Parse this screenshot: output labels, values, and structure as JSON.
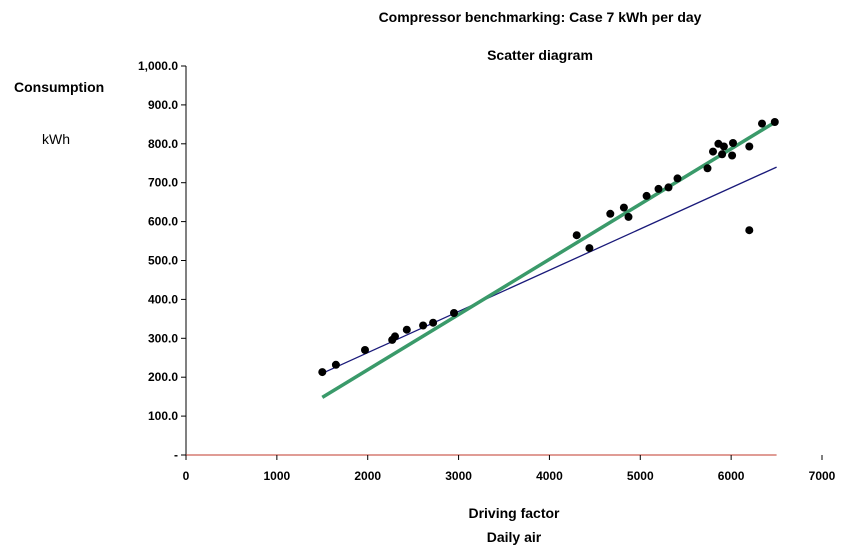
{
  "chart_data": {
    "type": "scatter",
    "title": "Compressor benchmarking: Case 7 kWh per day",
    "subtitle": "Scatter diagram",
    "ylabel": "Consumption",
    "yunit": "kWh",
    "xlabel": "Driving factor",
    "xlabel2": "Daily air",
    "xlim": [
      0,
      7000
    ],
    "ylim": [
      0,
      1000
    ],
    "x_ticks": [
      0,
      1000,
      2000,
      3000,
      4000,
      5000,
      6000,
      7000
    ],
    "x_tick_labels": [
      "0",
      "1000",
      "2000",
      "3000",
      "4000",
      "5000",
      "6000",
      "7000"
    ],
    "y_ticks": [
      0,
      100,
      200,
      300,
      400,
      500,
      600,
      700,
      800,
      900,
      1000
    ],
    "y_tick_labels": [
      "-",
      "100.0",
      "200.0",
      "300.0",
      "400.0",
      "500.0",
      "600.0",
      "700.0",
      "800.0",
      "900.0",
      "1,000.0"
    ],
    "grid": false,
    "colors": {
      "points": "#000000",
      "fit_line": "#1a1a7a",
      "target_line": "#3a9a6a",
      "zero_axis": "#c0392b"
    },
    "points": [
      [
        1500,
        213
      ],
      [
        1650,
        232
      ],
      [
        1970,
        270
      ],
      [
        2270,
        296
      ],
      [
        2300,
        305
      ],
      [
        2430,
        322
      ],
      [
        2610,
        333
      ],
      [
        2720,
        340
      ],
      [
        2950,
        365
      ],
      [
        4300,
        565
      ],
      [
        4440,
        532
      ],
      [
        4670,
        620
      ],
      [
        4820,
        636
      ],
      [
        4870,
        612
      ],
      [
        5070,
        666
      ],
      [
        5200,
        684
      ],
      [
        5310,
        688
      ],
      [
        5410,
        711
      ],
      [
        5740,
        737
      ],
      [
        5800,
        780
      ],
      [
        5860,
        800
      ],
      [
        5900,
        773
      ],
      [
        5920,
        793
      ],
      [
        6010,
        770
      ],
      [
        6020,
        802
      ],
      [
        6200,
        793
      ],
      [
        6200,
        578
      ],
      [
        6340,
        852
      ],
      [
        6480,
        856
      ]
    ],
    "series": [
      {
        "values": [
          [
            1500,
            210
          ],
          [
            6500,
            740
          ]
        ]
      },
      {
        "values": [
          [
            1500,
            148
          ],
          [
            6500,
            858
          ]
        ]
      }
    ]
  }
}
